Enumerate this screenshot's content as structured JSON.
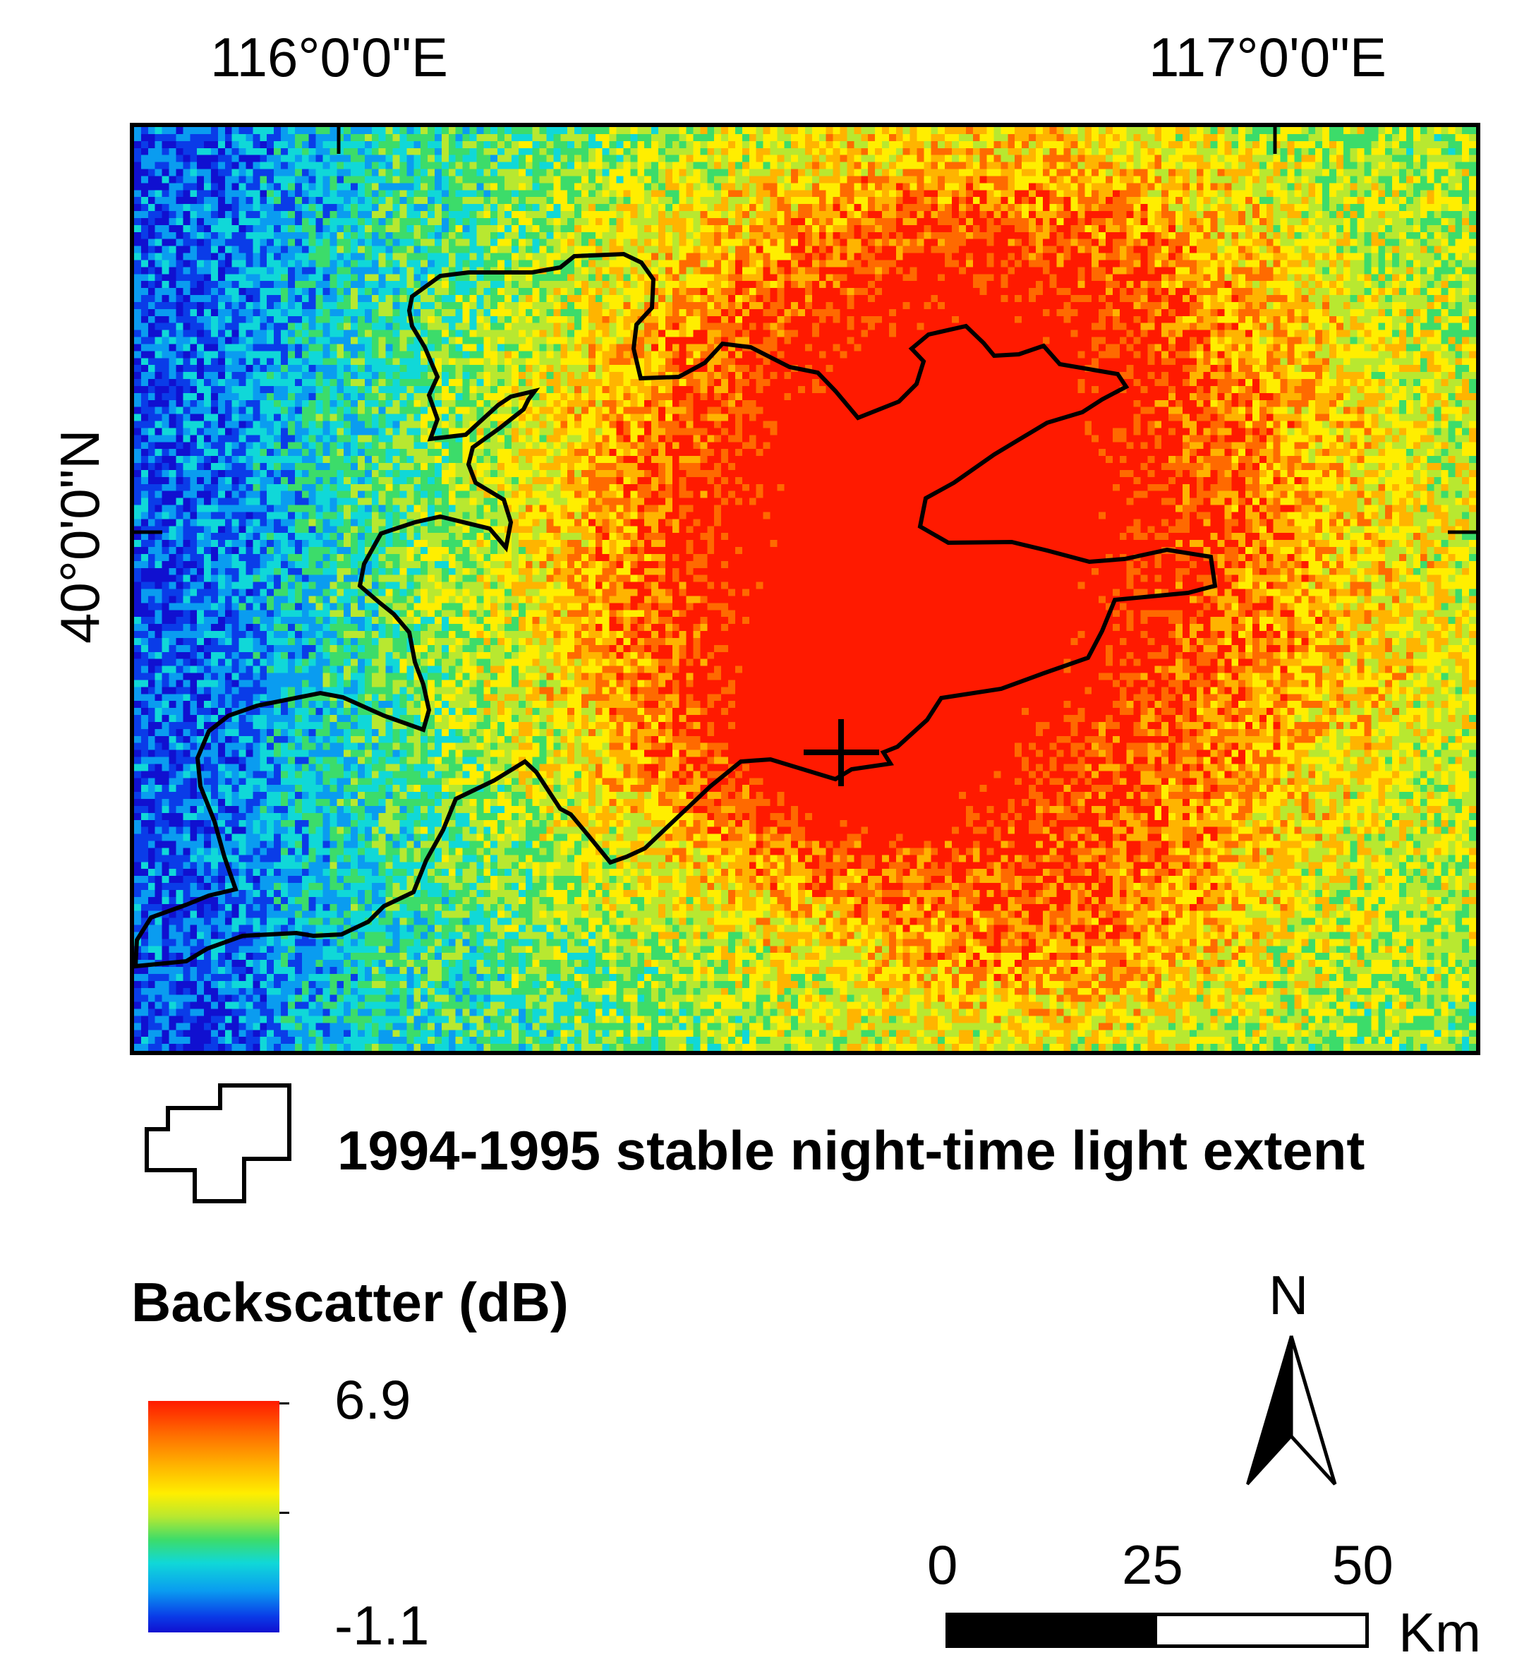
{
  "map": {
    "longitude_labels": [
      "116°0'0\"E",
      "117°0'0\"E"
    ],
    "latitude_label": "40°0'0\"N",
    "raster_colors": [
      "#1010d0",
      "#0a3ce8",
      "#0a9cf0",
      "#10d8d8",
      "#3cdc6a",
      "#b8e830",
      "#ffee00",
      "#ffb400",
      "#ff6a00",
      "#ff1a00"
    ],
    "outline_color": "#000000"
  },
  "legend": {
    "extent_label": "1994-1995 stable night-time light extent",
    "backscatter_title": "Backscatter (dB)",
    "max_value": "6.9",
    "min_value": "-1.1"
  },
  "north_arrow": {
    "label": "N"
  },
  "scale_bar": {
    "ticks": [
      "0",
      "25",
      "50"
    ],
    "unit": "Km"
  }
}
